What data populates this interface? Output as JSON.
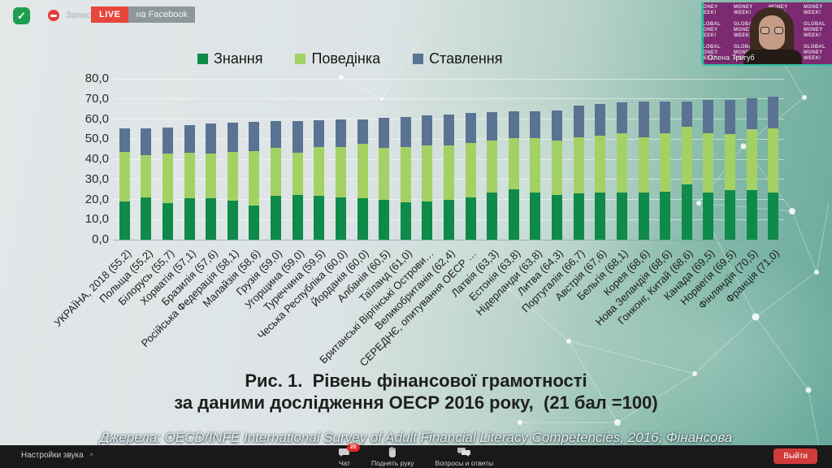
{
  "header": {
    "shield_icon": "meeting-secure-check",
    "recording_label": "Запись",
    "live_badge": "LIVE",
    "platform_badge": "на Facebook"
  },
  "webcam": {
    "name": "Олена Тригуб",
    "backdrop_text": "GLOBAL MONEY WEEK!"
  },
  "chart_data": {
    "type": "bar",
    "stacked": true,
    "title_line1": "Рис. 1.  Рівень фінансової грамотності",
    "title_line2": "за даними дослідження ОЕСР 2016 року,  (21 бал =100)",
    "legend": [
      "Знання",
      "Поведінка",
      "Ставлення"
    ],
    "colors": {
      "knowledge": "#0e8a4a",
      "behavior": "#a4d164",
      "attitude": "#5a7392"
    },
    "ylim": [
      0,
      80
    ],
    "ytick_labels": [
      "80,0",
      "70,0",
      "60,0",
      "50,0",
      "40,0",
      "30,0",
      "20,0",
      "10,0",
      "0,0"
    ],
    "grid": true,
    "legend_position": "top",
    "xlabel": "",
    "ylabel": "",
    "categories": [
      "УКРАЇНА, 2018 (55,2)",
      "Польща (55,2)",
      "Білорусь (55,7)",
      "Хорватія (57,1)",
      "Бразилія (57,6)",
      "Російська Федерація (58,1)",
      "Малайзія (58,6)",
      "Грузія (59,0)",
      "Угорщина (59,0)",
      "Туреччина (59,5)",
      "Чеська Республіка (60,0)",
      "Йорданія (60,0)",
      "Албанія (60,5)",
      "Таїланд (61,0)",
      "Британські Віргінські Острови…",
      "Великобританія (62,4)",
      "СЕРЕДНЄ, опитування ОЕСР …",
      "Латвія (63,3)",
      "Естонія (63,8)",
      "Нідерланди (63,8)",
      "Литва (64,3)",
      "Португалія (66,7)",
      "Австрія (67,6)",
      "Бельгія (68,1)",
      "Корея (68,6)",
      "Нова Зеландія (68,6)",
      "Гонконг, Китай (68,6)",
      "Канада (69,5)",
      "Норвегія (69,5)",
      "Фінляндія (70,5)",
      "Франція (71,0)"
    ],
    "series": [
      {
        "name": "Знання",
        "values": [
          19.0,
          21.0,
          18.1,
          20.5,
          20.5,
          19.5,
          17.1,
          21.9,
          22.4,
          21.9,
          21.0,
          20.5,
          20.0,
          18.6,
          19.0,
          20.0,
          21.0,
          23.3,
          25.2,
          23.3,
          22.4,
          22.9,
          23.3,
          23.3,
          23.3,
          23.8,
          27.6,
          23.3,
          24.8,
          24.8,
          23.3
        ]
      },
      {
        "name": "Поведінка",
        "values": [
          24.8,
          21.0,
          24.8,
          22.9,
          22.4,
          24.3,
          27.1,
          23.8,
          21.0,
          24.3,
          25.2,
          27.1,
          25.7,
          27.6,
          28.0,
          26.7,
          27.1,
          26.2,
          25.2,
          27.1,
          26.7,
          28.1,
          28.6,
          29.5,
          27.6,
          29.0,
          28.6,
          29.5,
          27.6,
          30.0,
          31.9
        ]
      },
      {
        "name": "Ставлення",
        "values": [
          11.4,
          13.2,
          12.8,
          13.7,
          14.7,
          14.3,
          14.4,
          13.3,
          15.6,
          13.3,
          13.8,
          12.4,
          14.8,
          14.8,
          14.9,
          15.7,
          14.8,
          13.8,
          13.4,
          13.4,
          15.2,
          15.7,
          15.7,
          15.3,
          17.7,
          15.8,
          12.4,
          16.7,
          17.1,
          15.7,
          15.8
        ]
      }
    ],
    "totals": [
      55.2,
      55.2,
      55.7,
      57.1,
      57.6,
      58.1,
      58.6,
      59.0,
      59.0,
      59.5,
      60.0,
      60.0,
      60.5,
      61.0,
      61.9,
      62.4,
      62.9,
      63.3,
      63.8,
      63.8,
      64.3,
      66.7,
      67.6,
      68.1,
      68.6,
      68.6,
      68.6,
      69.5,
      69.5,
      70.5,
      71.0
    ]
  },
  "source_note": "Джерела: OECD/INFE International Survey of Adult Financial Literacy Competencies, 2016; Фінансова",
  "toolbar": {
    "audio_settings": "Настройки звука",
    "caret": "^",
    "chat": "Чат",
    "chat_badge": "20",
    "raise_hand": "Поднять руку",
    "qa": "Вопросы и ответы",
    "leave": "Выйти"
  }
}
